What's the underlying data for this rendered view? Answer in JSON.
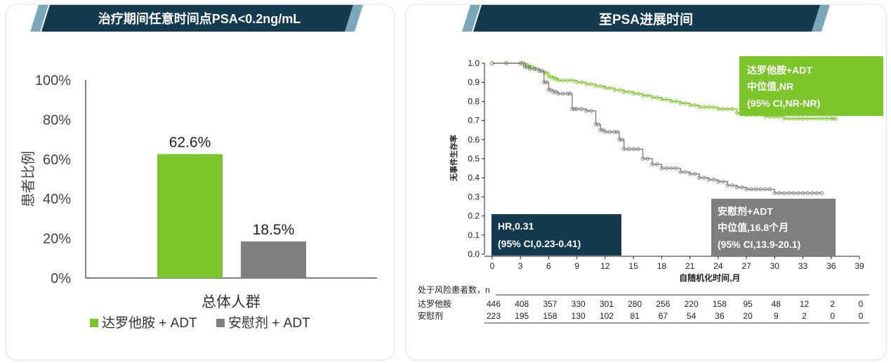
{
  "colors": {
    "green": "#7cc52a",
    "gray": "#7f7f7f",
    "navy": "#143a4f",
    "accent": "#7aa8b8",
    "banner": "#143a4f"
  },
  "left_panel": {
    "title": "治疗期间任意时间点PSA<0.2ng/mL"
  },
  "right_panel": {
    "title": "至PSA进展时间",
    "green_box": {
      "line1": "达罗他胺+ADT",
      "line2": "中位值,NR",
      "line3": "(95% CI,NR-NR)"
    },
    "gray_box": {
      "line1": "安慰剂+ADT",
      "line2": "中位值,16.8个月",
      "line3": "(95% CI,13.9-20.1)"
    },
    "hr_box": {
      "line1": "HR,0.31",
      "line2": "(95% CI,0.23-0.41)"
    },
    "risk_table": {
      "header": "处于风险患者数，n",
      "rows": [
        {
          "label": "达罗他胺",
          "values": [
            "446",
            "408",
            "357",
            "330",
            "301",
            "280",
            "256",
            "220",
            "158",
            "95",
            "48",
            "12",
            "2",
            "0"
          ]
        },
        {
          "label": "安慰剂",
          "values": [
            "223",
            "195",
            "158",
            "130",
            "102",
            "81",
            "67",
            "54",
            "36",
            "20",
            "9",
            "2",
            "0",
            "0"
          ]
        }
      ]
    }
  },
  "chart_data": [
    {
      "type": "bar",
      "title": "治疗期间任意时间点PSA<0.2ng/mL",
      "ylabel": "患者比例",
      "xlabel": "总体人群",
      "ylim": [
        0,
        100
      ],
      "yticks": [
        "0%",
        "20%",
        "40%",
        "60%",
        "80%",
        "100%"
      ],
      "categories": [
        "总体人群"
      ],
      "series": [
        {
          "name": "达罗他胺 + ADT",
          "values": [
            62.6
          ],
          "label": "62.6%",
          "color": "#7cc52a"
        },
        {
          "name": "安慰剂 + ADT",
          "values": [
            18.5
          ],
          "label": "18.5%",
          "color": "#7f7f7f"
        }
      ],
      "legend": "bottom"
    },
    {
      "type": "line",
      "title": "至PSA进展时间",
      "xlabel": "自随机化时间,月",
      "ylabel": "无事件生存率",
      "xlim": [
        0,
        39
      ],
      "ylim": [
        0,
        1.0
      ],
      "xticks": [
        "0",
        "3",
        "6",
        "9",
        "12",
        "15",
        "18",
        "21",
        "24",
        "27",
        "30",
        "33",
        "36",
        "39"
      ],
      "yticks": [
        "0.0",
        "0.1",
        "0.2",
        "0.3",
        "0.4",
        "0.5",
        "0.6",
        "0.7",
        "0.8",
        "0.9",
        "1.0"
      ],
      "series": [
        {
          "name": "达罗他胺+ADT",
          "color": "#7cc52a",
          "x": [
            0,
            3,
            3.5,
            4,
            4.5,
            5,
            5.5,
            6,
            6.5,
            7,
            8,
            9,
            10,
            11,
            12,
            13,
            14,
            15,
            16,
            17,
            18,
            19,
            20,
            21,
            22,
            23,
            24,
            25,
            26,
            27,
            28,
            29,
            30,
            31,
            32,
            33,
            34,
            35,
            36,
            36.5
          ],
          "y": [
            1.0,
            1.0,
            0.99,
            0.98,
            0.97,
            0.96,
            0.95,
            0.93,
            0.92,
            0.91,
            0.91,
            0.9,
            0.89,
            0.88,
            0.87,
            0.86,
            0.85,
            0.84,
            0.83,
            0.82,
            0.81,
            0.8,
            0.79,
            0.78,
            0.77,
            0.77,
            0.76,
            0.76,
            0.74,
            0.73,
            0.73,
            0.72,
            0.72,
            0.71,
            0.71,
            0.71,
            0.71,
            0.71,
            0.71,
            0.71
          ]
        },
        {
          "name": "安慰剂+ADT",
          "color": "#7f7f7f",
          "x": [
            0,
            3,
            3.5,
            4,
            5,
            5.5,
            6,
            6.5,
            7,
            8,
            8.5,
            9,
            10,
            11,
            11.5,
            12,
            13,
            13.5,
            14,
            15,
            16,
            17,
            18,
            19,
            20,
            21,
            22,
            23,
            24,
            25,
            26,
            27,
            28,
            29,
            30,
            31,
            32,
            33,
            34,
            35
          ],
          "y": [
            1.0,
            1.0,
            0.98,
            0.97,
            0.96,
            0.9,
            0.86,
            0.85,
            0.84,
            0.84,
            0.76,
            0.76,
            0.75,
            0.68,
            0.65,
            0.64,
            0.64,
            0.6,
            0.55,
            0.55,
            0.5,
            0.47,
            0.45,
            0.45,
            0.43,
            0.42,
            0.4,
            0.39,
            0.38,
            0.36,
            0.35,
            0.34,
            0.34,
            0.34,
            0.32,
            0.32,
            0.32,
            0.32,
            0.32,
            0.32
          ]
        }
      ]
    }
  ]
}
